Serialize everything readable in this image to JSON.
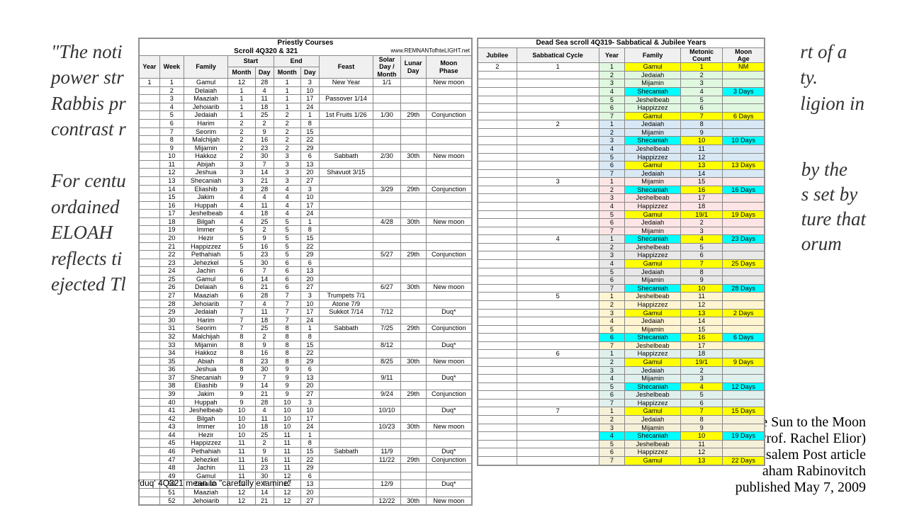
{
  "bg_left": [
    "\"The noti",
    "power str",
    "Rabbis pr",
    "contrast r",
    "",
    "For centu",
    "ordained",
    "ELOAH",
    "reflects ti",
    "ejected Tl"
  ],
  "bg_right": [
    "rt of a",
    "ty.",
    "ligion in"
  ],
  "bg_right2": [
    "by the",
    "s set by",
    "ture that",
    "orum"
  ],
  "citation": [
    "he Sun to the Moon",
    " of Prof. Rachel Elior)",
    "usalem Post article",
    "aham Rabinovitch",
    "published May 7, 2009"
  ],
  "footnote": "'duq' 4Q321 mean to \"carefully examine\"",
  "t1": {
    "title": "Priestly Courses\nScroll 4Q320 & 321",
    "url": "www.REMNANTofhteLIGHT.net",
    "headers": {
      "year": "Year",
      "week": "Week",
      "family": "Family",
      "start": "Start",
      "end": "End",
      "month": "Month",
      "day": "Day",
      "feast": "Feast",
      "solar": "Solar\nDay /\nMonth",
      "lunar": "Lunar\nDay",
      "moon": "Moon\nPhase"
    },
    "rows": [
      [
        "1",
        "1",
        "Gamul",
        "12",
        "28",
        "1",
        "3",
        "New Year",
        "1/1",
        "",
        "New moon"
      ],
      [
        "",
        "2",
        "Delaiah",
        "1",
        "4",
        "1",
        "10",
        "",
        "",
        "",
        ""
      ],
      [
        "",
        "3",
        "Maaziah",
        "1",
        "11",
        "1",
        "17",
        "Passover 1/14",
        "",
        "",
        ""
      ],
      [
        "",
        "4",
        "Jehoiarib",
        "1",
        "18",
        "1",
        "24",
        "",
        "",
        "",
        ""
      ],
      [
        "",
        "5",
        "Jedaiah",
        "1",
        "25",
        "2",
        "1",
        "1st Fruits 1/26",
        "1/30",
        "29th",
        "Conjunction"
      ],
      [
        "",
        "6",
        "Harim",
        "2",
        "2",
        "2",
        "8",
        "",
        "",
        "",
        ""
      ],
      [
        "",
        "7",
        "Seorim",
        "2",
        "9",
        "2",
        "15",
        "",
        "",
        "",
        ""
      ],
      [
        "",
        "8",
        "Malchijah",
        "2",
        "16",
        "2",
        "22",
        "",
        "",
        "",
        ""
      ],
      [
        "",
        "9",
        "Mijamin",
        "2",
        "23",
        "2",
        "29",
        "",
        "",
        "",
        ""
      ],
      [
        "",
        "10",
        "Hakkoz",
        "2",
        "30",
        "3",
        "6",
        "Sabbath",
        "2/30",
        "30th",
        "New moon"
      ],
      [
        "",
        "11",
        "Abijah",
        "3",
        "7",
        "3",
        "13",
        "",
        "",
        "",
        ""
      ],
      [
        "",
        "12",
        "Jeshua",
        "3",
        "14",
        "3",
        "20",
        "Shavuot 3/15",
        "",
        "",
        ""
      ],
      [
        "",
        "13",
        "Shecaniah",
        "3",
        "21",
        "3",
        "27",
        "",
        "",
        "",
        ""
      ],
      [
        "",
        "14",
        "Eliashib",
        "3",
        "28",
        "4",
        "3",
        "",
        "3/29",
        "29th",
        "Conjunction"
      ],
      [
        "",
        "15",
        "Jakim",
        "4",
        "4",
        "4",
        "10",
        "",
        "",
        "",
        ""
      ],
      [
        "",
        "16",
        "Huppah",
        "4",
        "11",
        "4",
        "17",
        "",
        "",
        "",
        ""
      ],
      [
        "",
        "17",
        "Jeshelbeab",
        "4",
        "18",
        "4",
        "24",
        "",
        "",
        "",
        ""
      ],
      [
        "",
        "18",
        "Bilgah",
        "4",
        "25",
        "5",
        "1",
        "",
        "4/28",
        "30th",
        "New moon"
      ],
      [
        "",
        "19",
        "Immer",
        "5",
        "2",
        "5",
        "8",
        "",
        "",
        "",
        ""
      ],
      [
        "",
        "20",
        "Hezir",
        "5",
        "9",
        "5",
        "15",
        "",
        "",
        "",
        ""
      ],
      [
        "",
        "21",
        "Happizzez",
        "5",
        "16",
        "5",
        "22",
        "",
        "",
        "",
        ""
      ],
      [
        "",
        "22",
        "Pethahiah",
        "5",
        "23",
        "5",
        "29",
        "",
        "5/27",
        "29th",
        "Conjunction"
      ],
      [
        "",
        "23",
        "Jehezkel",
        "5",
        "30",
        "6",
        "6",
        "",
        "",
        "",
        ""
      ],
      [
        "",
        "24",
        "Jachin",
        "6",
        "7",
        "6",
        "13",
        "",
        "",
        "",
        ""
      ],
      [
        "",
        "25",
        "Gamul",
        "6",
        "14",
        "6",
        "20",
        "",
        "",
        "",
        ""
      ],
      [
        "",
        "26",
        "Delaiah",
        "6",
        "21",
        "6",
        "27",
        "",
        "6/27",
        "30th",
        "New moon"
      ],
      [
        "",
        "27",
        "Maaziah",
        "6",
        "28",
        "7",
        "3",
        "Trumpets 7/1",
        "",
        "",
        ""
      ],
      [
        "",
        "28",
        "Jehoiarib",
        "7",
        "4",
        "7",
        "10",
        "Atone 7/9",
        "",
        "",
        ""
      ],
      [
        "",
        "29",
        "Jedaiah",
        "7",
        "11",
        "7",
        "17",
        "Sukkot 7/14",
        "7/12",
        "",
        "Duq*"
      ],
      [
        "",
        "30",
        "Harim",
        "7",
        "18",
        "7",
        "24",
        "",
        "",
        "",
        ""
      ],
      [
        "",
        "31",
        "Seorim",
        "7",
        "25",
        "8",
        "1",
        "Sabbath",
        "7/25",
        "29th",
        "Conjunction"
      ],
      [
        "",
        "32",
        "Malchijah",
        "8",
        "2",
        "8",
        "8",
        "",
        "",
        "",
        ""
      ],
      [
        "",
        "33",
        "Mijamin",
        "8",
        "9",
        "8",
        "15",
        "",
        "8/12",
        "",
        "Duq*"
      ],
      [
        "",
        "34",
        "Hakkoz",
        "8",
        "16",
        "8",
        "22",
        "",
        "",
        "",
        ""
      ],
      [
        "",
        "35",
        "Abiah",
        "8",
        "23",
        "8",
        "29",
        "",
        "8/25",
        "30th",
        "New moon"
      ],
      [
        "",
        "36",
        "Jeshua",
        "8",
        "30",
        "9",
        "6",
        "",
        "",
        "",
        ""
      ],
      [
        "",
        "37",
        "Shecaniah",
        "9",
        "7",
        "9",
        "13",
        "",
        "9/11",
        "",
        "Duq*"
      ],
      [
        "",
        "38",
        "Eliashib",
        "9",
        "14",
        "9",
        "20",
        "",
        "",
        "",
        ""
      ],
      [
        "",
        "39",
        "Jakim",
        "9",
        "21",
        "9",
        "27",
        "",
        "9/24",
        "29th",
        "Conjunction"
      ],
      [
        "",
        "40",
        "Huppah",
        "9",
        "28",
        "10",
        "3",
        "",
        "",
        "",
        ""
      ],
      [
        "",
        "41",
        "Jeshelbeab",
        "10",
        "4",
        "10",
        "10",
        "",
        "10/10",
        "",
        "Duq*"
      ],
      [
        "",
        "42",
        "Bilgah",
        "10",
        "11",
        "10",
        "17",
        "",
        "",
        "",
        ""
      ],
      [
        "",
        "43",
        "Immer",
        "10",
        "18",
        "10",
        "24",
        "",
        "10/23",
        "30th",
        "New moon"
      ],
      [
        "",
        "44",
        "Hezir",
        "10",
        "25",
        "11",
        "1",
        "",
        "",
        "",
        ""
      ],
      [
        "",
        "45",
        "Happizzez",
        "11",
        "2",
        "11",
        "8",
        "",
        "",
        "",
        ""
      ],
      [
        "",
        "46",
        "Pethahiah",
        "11",
        "9",
        "11",
        "15",
        "Sabbath",
        "11/9",
        "",
        "Duq*"
      ],
      [
        "",
        "47",
        "Jehezkel",
        "11",
        "16",
        "11",
        "22",
        "",
        "11/22",
        "29th",
        "Conjunction"
      ],
      [
        "",
        "48",
        "Jachin",
        "11",
        "23",
        "11",
        "29",
        "",
        "",
        "",
        ""
      ],
      [
        "",
        "49",
        "Gamul",
        "11",
        "30",
        "12",
        "6",
        "",
        "",
        "",
        ""
      ],
      [
        "",
        "50",
        "Delaiah",
        "12",
        "7",
        "12",
        "13",
        "",
        "12/9",
        "",
        "Duq*"
      ],
      [
        "",
        "51",
        "Maaziah",
        "12",
        "14",
        "12",
        "20",
        "",
        "",
        "",
        ""
      ],
      [
        "",
        "52",
        "Jehoiarib",
        "12",
        "21",
        "12",
        "27",
        "",
        "12/22",
        "30th",
        "New moon"
      ]
    ]
  },
  "t2": {
    "title": "Dead Sea scroll 4Q319- Sabbatical & Jubilee Years",
    "headers": {
      "jubilee": "Jubilee",
      "sabbatical": "Sabbatical Cycle",
      "year": "Year",
      "family": "Family",
      "metonic": "Metonic\nCount",
      "moon": "Moon\nAge"
    },
    "rows": [
      {
        "j": "2",
        "s": "1",
        "y": "1",
        "f": "Gamul",
        "m": "1",
        "a": "NM",
        "g": 1,
        "hf": "y",
        "hm": "y",
        "ha": "y"
      },
      {
        "j": "",
        "s": "",
        "y": "2",
        "f": "Jedaiah",
        "m": "2",
        "a": "",
        "g": 1
      },
      {
        "j": "",
        "s": "",
        "y": "3",
        "f": "Mijamin",
        "m": "3",
        "a": "",
        "g": 1
      },
      {
        "j": "",
        "s": "",
        "y": "4",
        "f": "Shecaniah",
        "m": "4",
        "a": "3 Days",
        "g": 1,
        "hf": "c",
        "ha": "c"
      },
      {
        "j": "",
        "s": "",
        "y": "5",
        "f": "Jeshelbeab",
        "m": "5",
        "a": "",
        "g": 1
      },
      {
        "j": "",
        "s": "",
        "y": "6",
        "f": "Happizzez",
        "m": "6",
        "a": "",
        "g": 1
      },
      {
        "j": "",
        "s": "",
        "y": "7",
        "f": "Gamul",
        "m": "7",
        "a": "6 Days",
        "g": 1,
        "hf": "y",
        "hm": "y",
        "ha": "y"
      },
      {
        "j": "",
        "s": "2",
        "y": "1",
        "f": "Jedaiah",
        "m": "8",
        "a": "",
        "g": 2
      },
      {
        "j": "",
        "s": "",
        "y": "2",
        "f": "Mijamin",
        "m": "9",
        "a": "",
        "g": 2
      },
      {
        "j": "",
        "s": "",
        "y": "3",
        "f": "Shecaniah",
        "m": "10",
        "a": "10 Days",
        "g": 2,
        "hf": "c",
        "hm": "y",
        "ha": "c"
      },
      {
        "j": "",
        "s": "",
        "y": "4",
        "f": "Jeshelbeab",
        "m": "11",
        "a": "",
        "g": 2
      },
      {
        "j": "",
        "s": "",
        "y": "5",
        "f": "Happizzez",
        "m": "12",
        "a": "",
        "g": 2
      },
      {
        "j": "",
        "s": "",
        "y": "6",
        "f": "Gamul",
        "m": "13",
        "a": "13 Days",
        "g": 2,
        "hf": "y",
        "hm": "y",
        "ha": "y"
      },
      {
        "j": "",
        "s": "",
        "y": "7",
        "f": "Jedaiah",
        "m": "14",
        "a": "",
        "g": 2
      },
      {
        "j": "",
        "s": "3",
        "y": "1",
        "f": "Mijamin",
        "m": "15",
        "a": "",
        "g": 3
      },
      {
        "j": "",
        "s": "",
        "y": "2",
        "f": "Shecaniah",
        "m": "16",
        "a": "16 Days",
        "g": 3,
        "hf": "c",
        "hm": "y",
        "ha": "c"
      },
      {
        "j": "",
        "s": "",
        "y": "3",
        "f": "Jeshelbeab",
        "m": "17",
        "a": "",
        "g": 3
      },
      {
        "j": "",
        "s": "",
        "y": "4",
        "f": "Happizzez",
        "m": "18",
        "a": "",
        "g": 3
      },
      {
        "j": "",
        "s": "",
        "y": "5",
        "f": "Gamul",
        "m": "19/1",
        "a": "19 Days",
        "g": 3,
        "hf": "y",
        "hm": "y",
        "ha": "y"
      },
      {
        "j": "",
        "s": "",
        "y": "6",
        "f": "Jedaiah",
        "m": "2",
        "a": "",
        "g": 3
      },
      {
        "j": "",
        "s": "",
        "y": "7",
        "f": "Mijamin",
        "m": "3",
        "a": "",
        "g": 3
      },
      {
        "j": "",
        "s": "4",
        "y": "1",
        "f": "Shecaniah",
        "m": "4",
        "a": "23 Days",
        "g": 4,
        "hf": "c",
        "hm": "y",
        "ha": "c"
      },
      {
        "j": "",
        "s": "",
        "y": "2",
        "f": "Jeshelbeab",
        "m": "5",
        "a": "",
        "g": 4
      },
      {
        "j": "",
        "s": "",
        "y": "3",
        "f": "Happizzez",
        "m": "6",
        "a": "",
        "g": 4
      },
      {
        "j": "",
        "s": "",
        "y": "4",
        "f": "Gamul",
        "m": "7",
        "a": "25 Days",
        "g": 4,
        "hf": "y",
        "hm": "y",
        "ha": "y"
      },
      {
        "j": "",
        "s": "",
        "y": "5",
        "f": "Jedaiah",
        "m": "8",
        "a": "",
        "g": 4
      },
      {
        "j": "",
        "s": "",
        "y": "6",
        "f": "Mijamin",
        "m": "9",
        "a": "",
        "g": 4
      },
      {
        "j": "",
        "s": "",
        "y": "7",
        "f": "Shecaniah",
        "m": "10",
        "a": "28 Days",
        "g": 4,
        "hf": "c",
        "hm": "y",
        "ha": "c"
      },
      {
        "j": "",
        "s": "5",
        "y": "1",
        "f": "Jeshelbeab",
        "m": "11",
        "a": "",
        "g": 5
      },
      {
        "j": "",
        "s": "",
        "y": "2",
        "f": "Happizzez",
        "m": "12",
        "a": "",
        "g": 5
      },
      {
        "j": "",
        "s": "",
        "y": "3",
        "f": "Gamul",
        "m": "13",
        "a": "2 Days",
        "g": 5,
        "hf": "y",
        "hm": "y",
        "ha": "y"
      },
      {
        "j": "",
        "s": "",
        "y": "4",
        "f": "Jedaiah",
        "m": "14",
        "a": "",
        "g": 5
      },
      {
        "j": "",
        "s": "",
        "y": "5",
        "f": "Mijamin",
        "m": "15",
        "a": "",
        "g": 5
      },
      {
        "j": "",
        "s": "",
        "y": "6",
        "f": "Shecaniah",
        "m": "16",
        "a": "6 Days",
        "g": 5,
        "hy": "c",
        "hf": "c",
        "hm": "y",
        "ha": "c"
      },
      {
        "j": "",
        "s": "",
        "y": "7",
        "f": "Jeshelbeab",
        "m": "17",
        "a": "",
        "g": 5
      },
      {
        "j": "",
        "s": "6",
        "y": "1",
        "f": "Happizzez",
        "m": "18",
        "a": "",
        "g": 6
      },
      {
        "j": "",
        "s": "",
        "y": "2",
        "f": "Gamul",
        "m": "19/1",
        "a": "9 Days",
        "g": 6,
        "hf": "y",
        "hm": "y",
        "ha": "y"
      },
      {
        "j": "",
        "s": "",
        "y": "3",
        "f": "Jedaiah",
        "m": "2",
        "a": "",
        "g": 6
      },
      {
        "j": "",
        "s": "",
        "y": "4",
        "f": "Mijamin",
        "m": "3",
        "a": "",
        "g": 6
      },
      {
        "j": "",
        "s": "",
        "y": "5",
        "f": "Shecaniah",
        "m": "4",
        "a": "12 Days",
        "g": 6,
        "hf": "c",
        "hm": "y",
        "ha": "c"
      },
      {
        "j": "",
        "s": "",
        "y": "6",
        "f": "Jeshelbeab",
        "m": "5",
        "a": "",
        "g": 6
      },
      {
        "j": "",
        "s": "",
        "y": "7",
        "f": "Happizzez",
        "m": "6",
        "a": "",
        "g": 6
      },
      {
        "j": "",
        "s": "7",
        "y": "1",
        "f": "Gamul",
        "m": "7",
        "a": "15 Days",
        "g": 7,
        "hf": "y",
        "hm": "y",
        "ha": "y"
      },
      {
        "j": "",
        "s": "",
        "y": "2",
        "f": "Jedaiah",
        "m": "8",
        "a": "",
        "g": 7
      },
      {
        "j": "",
        "s": "",
        "y": "3",
        "f": "Mijamin",
        "m": "9",
        "a": "",
        "g": 7
      },
      {
        "j": "",
        "s": "",
        "y": "4",
        "f": "Shecaniah",
        "m": "10",
        "a": "19 Days",
        "g": 7,
        "hy": "c",
        "hf": "c",
        "hm": "y",
        "ha": "c"
      },
      {
        "j": "",
        "s": "",
        "y": "5",
        "f": "Jeshelbeab",
        "m": "11",
        "a": "",
        "g": 7
      },
      {
        "j": "",
        "s": "",
        "y": "6",
        "f": "Happizzez",
        "m": "12",
        "a": "",
        "g": 7
      },
      {
        "j": "",
        "s": "",
        "y": "7",
        "f": "Gamul",
        "m": "13",
        "a": "22 Days",
        "g": 7,
        "hf": "y",
        "hm": "y",
        "ha": "y"
      }
    ]
  }
}
